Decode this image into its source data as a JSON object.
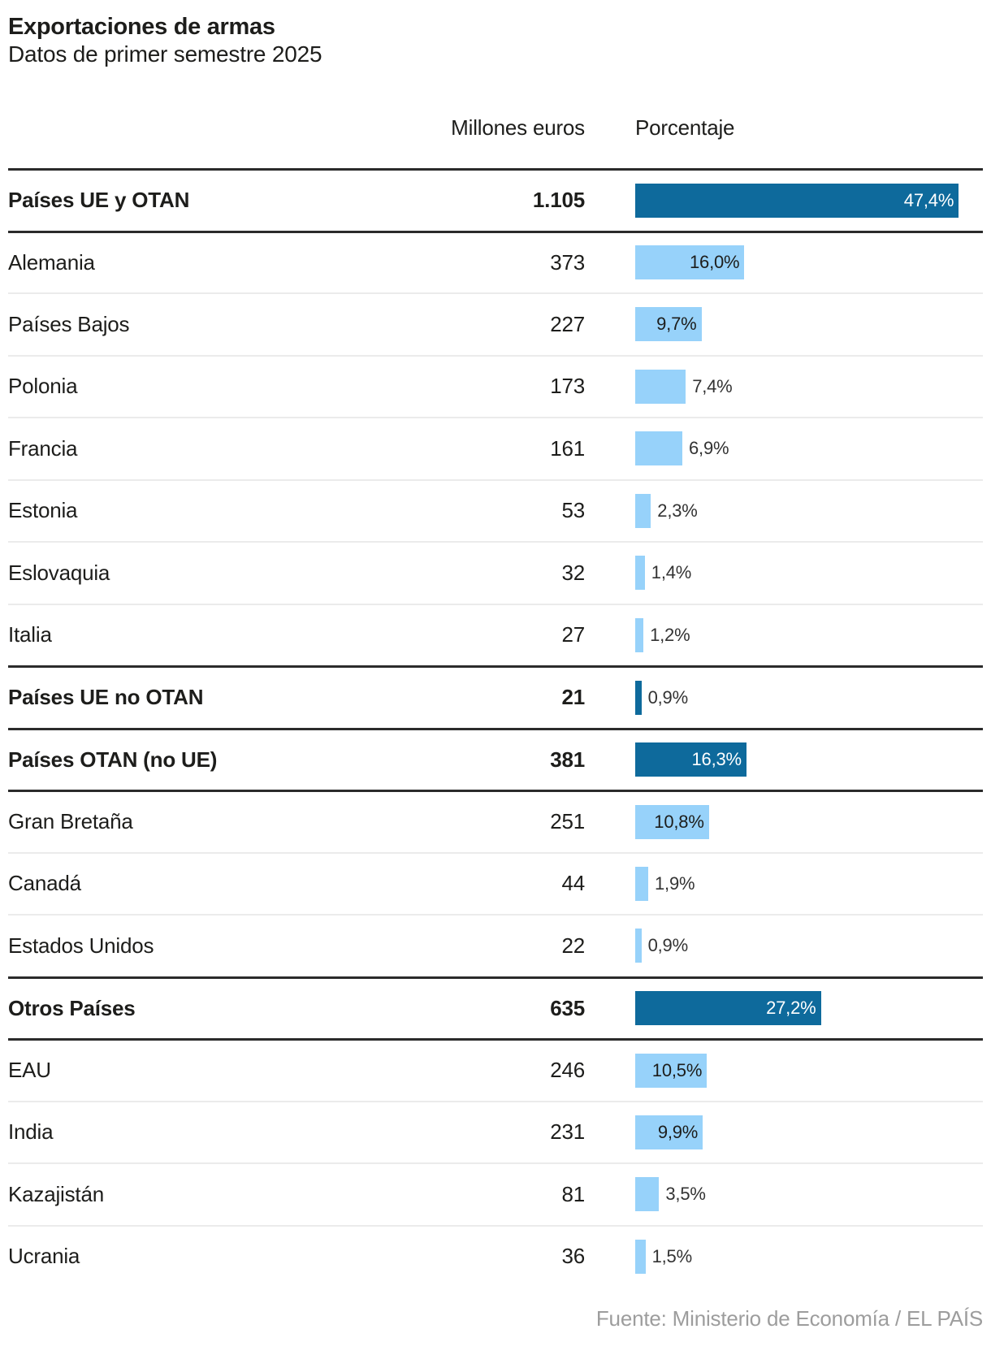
{
  "header": {
    "title": "Exportaciones de armas",
    "subtitle": "Datos de primer semestre 2025"
  },
  "columns": {
    "value_header": "Millones euros",
    "percent_header": "Porcentaje"
  },
  "source": "Fuente: Ministerio de Economía / EL PAÍS",
  "colors": {
    "section_bar": "#0e6a9c",
    "country_bar": "#97d2fa",
    "text": "#1d1d1b",
    "outside_label": "#333333",
    "light_divider": "#ebebeb",
    "dark_divider": "#2b2b2b",
    "source_text": "#9d9d9d"
  },
  "chart_data": {
    "type": "bar",
    "title": "Exportaciones de armas",
    "subtitle": "Datos de primer semestre 2025",
    "xlabel": "Porcentaje",
    "value_column_label": "Millones euros",
    "xlim": [
      0,
      50
    ],
    "grid": false,
    "orientation": "horizontal",
    "rows": [
      {
        "label": "Países UE y OTAN",
        "value": 1105,
        "value_label": "1.105",
        "pct": 47.4,
        "pct_label": "47,4%",
        "section": true
      },
      {
        "label": "Alemania",
        "value": 373,
        "value_label": "373",
        "pct": 16.0,
        "pct_label": "16,0%",
        "section": false
      },
      {
        "label": "Países Bajos",
        "value": 227,
        "value_label": "227",
        "pct": 9.7,
        "pct_label": "9,7%",
        "section": false
      },
      {
        "label": "Polonia",
        "value": 173,
        "value_label": "173",
        "pct": 7.4,
        "pct_label": "7,4%",
        "section": false
      },
      {
        "label": "Francia",
        "value": 161,
        "value_label": "161",
        "pct": 6.9,
        "pct_label": "6,9%",
        "section": false
      },
      {
        "label": "Estonia",
        "value": 53,
        "value_label": "53",
        "pct": 2.3,
        "pct_label": "2,3%",
        "section": false
      },
      {
        "label": "Eslovaquia",
        "value": 32,
        "value_label": "32",
        "pct": 1.4,
        "pct_label": "1,4%",
        "section": false
      },
      {
        "label": "Italia",
        "value": 27,
        "value_label": "27",
        "pct": 1.2,
        "pct_label": "1,2%",
        "section": false
      },
      {
        "label": "Países UE no OTAN",
        "value": 21,
        "value_label": "21",
        "pct": 0.9,
        "pct_label": "0,9%",
        "section": true
      },
      {
        "label": "Países OTAN (no UE)",
        "value": 381,
        "value_label": "381",
        "pct": 16.3,
        "pct_label": "16,3%",
        "section": true
      },
      {
        "label": "Gran Bretaña",
        "value": 251,
        "value_label": "251",
        "pct": 10.8,
        "pct_label": "10,8%",
        "section": false
      },
      {
        "label": "Canadá",
        "value": 44,
        "value_label": "44",
        "pct": 1.9,
        "pct_label": "1,9%",
        "section": false
      },
      {
        "label": "Estados Unidos",
        "value": 22,
        "value_label": "22",
        "pct": 0.9,
        "pct_label": "0,9%",
        "section": false
      },
      {
        "label": "Otros Países",
        "value": 635,
        "value_label": "635",
        "pct": 27.2,
        "pct_label": "27,2%",
        "section": true
      },
      {
        "label": "EAU",
        "value": 246,
        "value_label": "246",
        "pct": 10.5,
        "pct_label": "10,5%",
        "section": false
      },
      {
        "label": "India",
        "value": 231,
        "value_label": "231",
        "pct": 9.9,
        "pct_label": "9,9%",
        "section": false
      },
      {
        "label": "Kazajistán",
        "value": 81,
        "value_label": "81",
        "pct": 3.5,
        "pct_label": "3,5%",
        "section": false
      },
      {
        "label": "Ucrania",
        "value": 36,
        "value_label": "36",
        "pct": 1.5,
        "pct_label": "1,5%",
        "section": false
      }
    ]
  }
}
